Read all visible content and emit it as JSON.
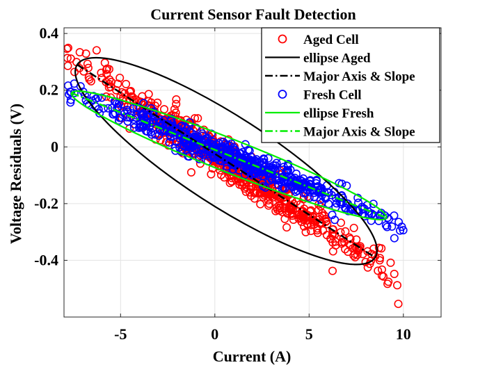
{
  "chart_data": {
    "type": "scatter",
    "title": "Current Sensor Fault Detection",
    "xlabel": "Current (A)",
    "ylabel": "Voltage Residuals (V)",
    "xlim": [
      -8,
      12
    ],
    "ylim": [
      -0.6,
      0.42
    ],
    "xticks": [
      -5,
      0,
      5,
      10
    ],
    "yticks": [
      -0.4,
      -0.2,
      0,
      0.2,
      0.4
    ],
    "xtick_labels": [
      "-5",
      "0",
      "5",
      "10"
    ],
    "ytick_labels": [
      "-0.4",
      "-0.2",
      "0",
      "0.2",
      "0.4"
    ],
    "grid": true,
    "legend_position": "top-right",
    "series": [
      {
        "name": "Aged Cell",
        "kind": "scatter",
        "marker": "circle-open",
        "color": "#ff0000",
        "trend": {
          "slope": -0.0441,
          "intercept": -0.0283
        },
        "x_range": [
          -7.9,
          9.8
        ],
        "spread": 0.035,
        "seed": 17,
        "n": 700
      },
      {
        "name": "ellipse Aged",
        "kind": "ellipse",
        "line": "solid",
        "color": "#000000",
        "center": [
          0.6,
          -0.055
        ],
        "endpoints": [
          [
            -7.3,
            0.29
          ],
          [
            8.5,
            -0.39
          ]
        ],
        "width_points": [
          [
            -1.0,
            0.06
          ],
          [
            2.2,
            -0.17
          ]
        ]
      },
      {
        "name": "Major Axis & Slope",
        "kind": "line",
        "line": "dash-dot",
        "color": "#000000",
        "x": [
          -7.3,
          8.5
        ],
        "y": [
          0.29,
          -0.39
        ]
      },
      {
        "name": "Fresh Cell",
        "kind": "scatter",
        "marker": "circle-open",
        "color": "#0000ff",
        "trend": {
          "slope": -0.0271,
          "intercept": -0.0094
        },
        "x_range": [
          -7.8,
          10.0
        ],
        "spread": 0.022,
        "seed": 91,
        "n": 600
      },
      {
        "name": "ellipse Fresh",
        "kind": "ellipse",
        "line": "solid",
        "color": "#00ee00",
        "center": [
          0.75,
          -0.015
        ],
        "endpoints": [
          [
            -7.6,
            0.19
          ],
          [
            9.1,
            -0.25
          ]
        ],
        "width_points": [
          [
            0.45,
            0.04
          ],
          [
            1.05,
            -0.07
          ]
        ]
      },
      {
        "name": "Major Axis & Slope",
        "kind": "line",
        "line": "dash-dot",
        "color": "#00ee00",
        "x": [
          -7.6,
          9.1
        ],
        "y": [
          0.19,
          -0.25
        ]
      }
    ]
  }
}
